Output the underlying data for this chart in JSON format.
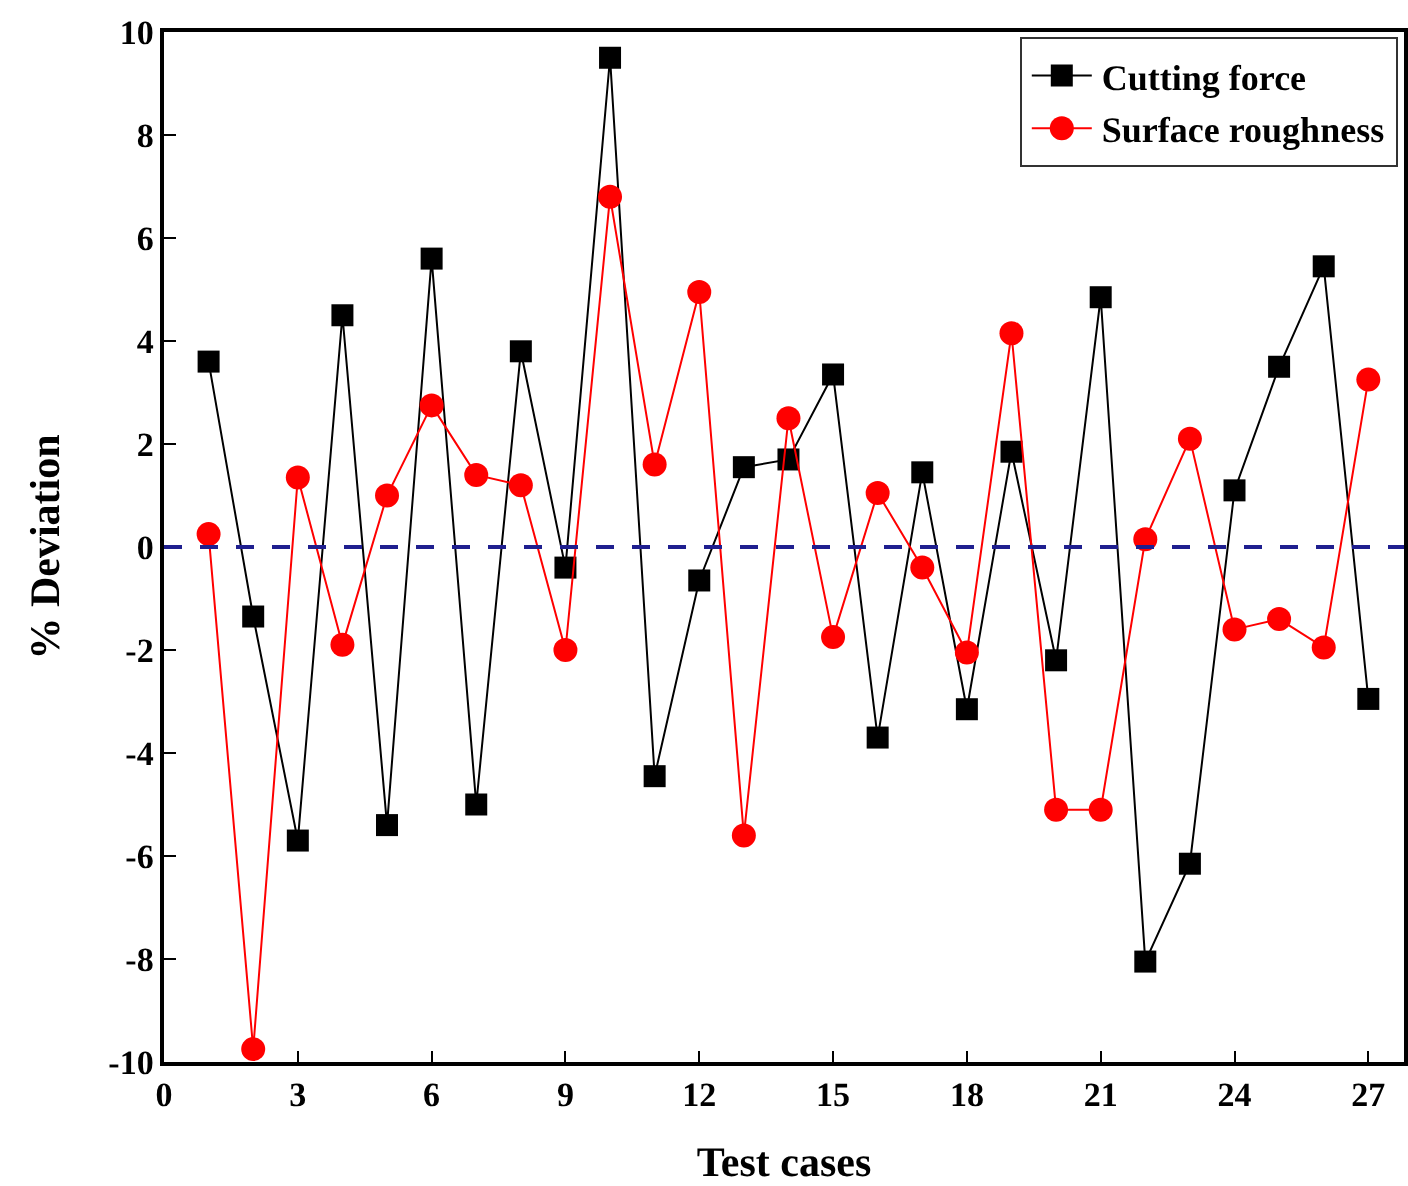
{
  "chart_data": {
    "type": "line",
    "xlabel": "Test cases",
    "ylabel": "% Deviation",
    "x": [
      1,
      2,
      3,
      4,
      5,
      6,
      7,
      8,
      9,
      10,
      11,
      12,
      13,
      14,
      15,
      16,
      17,
      18,
      19,
      20,
      21,
      22,
      23,
      24,
      25,
      26,
      27
    ],
    "series": [
      {
        "name": "Cutting force",
        "color": "#000000",
        "marker": "square",
        "values": [
          3.6,
          -1.35,
          -5.7,
          4.5,
          -5.4,
          5.6,
          -5.0,
          3.8,
          -0.4,
          9.5,
          -4.45,
          -0.65,
          1.55,
          1.7,
          3.35,
          -3.7,
          1.45,
          -3.15,
          1.85,
          -2.2,
          4.85,
          -8.05,
          -6.15,
          1.1,
          3.5,
          5.45,
          -2.95
        ]
      },
      {
        "name": "Surface roughness",
        "color": "#ff0000",
        "marker": "circle",
        "values": [
          0.25,
          -9.75,
          1.35,
          -1.9,
          1.0,
          2.75,
          1.4,
          1.2,
          -2.0,
          6.8,
          1.6,
          4.95,
          -5.6,
          2.5,
          -1.75,
          1.05,
          -0.4,
          -2.05,
          4.15,
          -5.1,
          -5.1,
          0.15,
          2.1,
          -1.6,
          -1.4,
          -1.95,
          3.25
        ]
      }
    ],
    "xlim": [
      0,
      27.8
    ],
    "xticks": [
      0,
      3,
      6,
      9,
      12,
      15,
      18,
      21,
      24,
      27
    ],
    "ylim": [
      -10,
      10
    ],
    "yticks": [
      -10,
      -8,
      -6,
      -4,
      -2,
      0,
      2,
      4,
      6,
      8,
      10
    ],
    "ref_lines": [
      {
        "axis": "y",
        "value": 0,
        "color": "#1f1f8f",
        "line_style": "dashed"
      }
    ],
    "grid": false,
    "legend": "top right",
    "line_style": "solid"
  }
}
